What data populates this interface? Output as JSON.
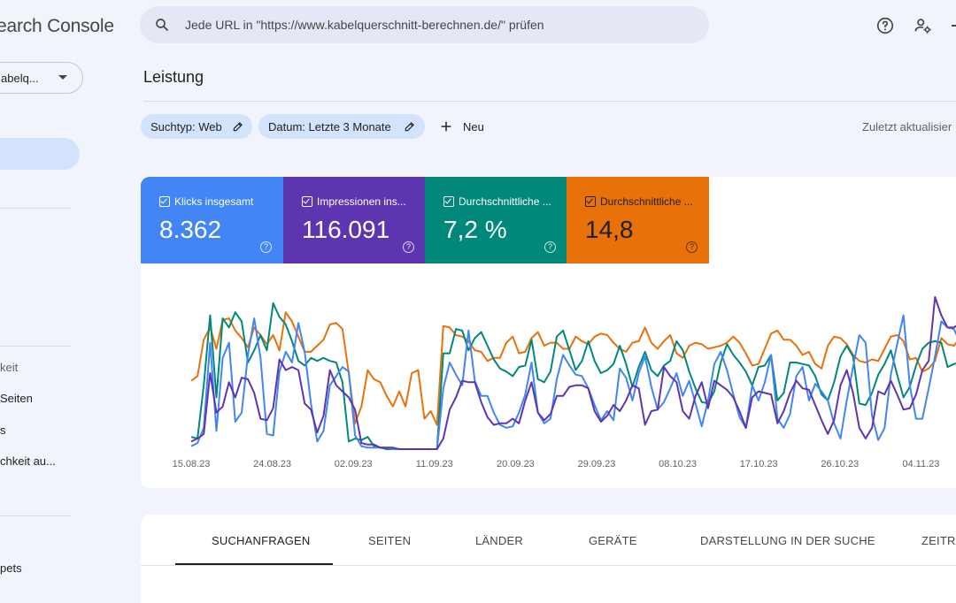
{
  "app": {
    "title": "Search Console",
    "brand_visible": "earch Console"
  },
  "property": {
    "label_visible": "abelq..."
  },
  "sidebar": {
    "section_head": "keit",
    "items": [
      {
        "label": "Seiten"
      },
      {
        "label": "s"
      },
      {
        "label": "chkeit au..."
      },
      {
        "label": "pets"
      }
    ]
  },
  "search": {
    "placeholder": "Jede URL in \"https://www.kabelquerschnitt-berechnen.de/\" prüfen"
  },
  "page": {
    "title": "Leistung",
    "filters": [
      {
        "label": "Suchtyp: Web"
      },
      {
        "label": "Datum: Letzte 3 Monate"
      }
    ],
    "new_label": "Neu",
    "updated_label": "Zuletzt aktualisier"
  },
  "metrics": [
    {
      "label": "Klicks insgesamt",
      "value": "8.362",
      "color": "#4285f4"
    },
    {
      "label": "Impressionen ins...",
      "value": "116.091",
      "color": "#5e35b1"
    },
    {
      "label": "Durchschnittliche ...",
      "value": "7,2 %",
      "color": "#00897b"
    },
    {
      "label": "Durchschnittliche ...",
      "value": "14,8",
      "color": "#e8710a"
    }
  ],
  "chart_data": {
    "type": "line",
    "x_labels": [
      "15.08.23",
      "24.08.23",
      "02.09.23",
      "11.09.23",
      "20.09.23",
      "29.09.23",
      "08.10.23",
      "17.10.23",
      "26.10.23",
      "04.11.23"
    ],
    "y_axis": "hidden (each series on its own normalized scale)",
    "series": [
      {
        "name": "Klicks insgesamt",
        "color": "#4285f4",
        "values": [
          2,
          4,
          14,
          70,
          12,
          60,
          70,
          18,
          24,
          62,
          86,
          60,
          10,
          9,
          51,
          64,
          57,
          83,
          64,
          30,
          5,
          12,
          42,
          48,
          54,
          51,
          9,
          2,
          1,
          1,
          1,
          1,
          0,
          0,
          0,
          0,
          0,
          0,
          0,
          0,
          40,
          57,
          49,
          42,
          78,
          45,
          35,
          35,
          24,
          16,
          14,
          15,
          24,
          36,
          57,
          24,
          17,
          20,
          46,
          62,
          55,
          49,
          48,
          40,
          29,
          19,
          25,
          19,
          53,
          47,
          32,
          50,
          61,
          41,
          26,
          31,
          40,
          50,
          35,
          45,
          30,
          15,
          32,
          56,
          64,
          52,
          36,
          21,
          14,
          42,
          32,
          44,
          62,
          20,
          14,
          23,
          48,
          54,
          32,
          43,
          38,
          32,
          17,
          7,
          32,
          54,
          75,
          70,
          22,
          6,
          14,
          49,
          69,
          88,
          42,
          20,
          20,
          40,
          61,
          84,
          80,
          79,
          70,
          62,
          62
        ]
      },
      {
        "name": "Impressionen insgesamt",
        "color": "#5e35b1",
        "values": [
          5,
          7,
          10,
          50,
          24,
          28,
          44,
          34,
          47,
          46,
          37,
          20,
          19,
          27,
          59,
          52,
          54,
          52,
          30,
          26,
          11,
          22,
          52,
          42,
          38,
          34,
          26,
          4,
          3,
          3,
          1,
          1,
          1,
          0,
          0,
          0,
          0,
          0,
          0,
          0,
          7,
          26,
          34,
          45,
          44,
          44,
          31,
          21,
          16,
          17,
          17,
          20,
          17,
          32,
          44,
          24,
          19,
          23,
          35,
          35,
          41,
          42,
          42,
          40,
          25,
          18,
          22,
          29,
          25,
          32,
          42,
          40,
          16,
          25,
          26,
          54,
          48,
          44,
          25,
          20,
          35,
          44,
          27,
          45,
          42,
          39,
          34,
          25,
          14,
          34,
          38,
          37,
          36,
          17,
          25,
          37,
          45,
          40,
          39,
          29,
          19,
          10,
          19,
          42,
          52,
          37,
          14,
          7,
          14,
          38,
          36,
          45,
          36,
          26,
          27,
          36,
          52,
          58,
          100,
          88,
          80,
          80,
          83,
          84
        ]
      },
      {
        "name": "Durchschnittliche CTR",
        "color": "#00897b",
        "values": [
          8,
          7,
          42,
          88,
          34,
          86,
          80,
          90,
          84,
          57,
          65,
          75,
          65,
          96,
          87,
          82,
          71,
          58,
          55,
          60,
          58,
          60,
          58,
          57,
          44,
          5,
          7,
          6,
          8,
          2,
          1,
          0,
          0,
          0,
          0,
          0,
          0,
          0,
          0,
          0,
          63,
          63,
          79,
          78,
          65,
          73,
          77,
          68,
          59,
          53,
          51,
          48,
          54,
          55,
          72,
          46,
          44,
          51,
          74,
          78,
          65,
          52,
          58,
          71,
          58,
          50,
          52,
          56,
          68,
          56,
          41,
          54,
          64,
          52,
          48,
          55,
          58,
          71,
          65,
          51,
          40,
          31,
          30,
          38,
          57,
          69,
          62,
          57,
          51,
          42,
          54,
          55,
          62,
          32,
          37,
          57,
          57,
          56,
          55,
          48,
          36,
          32,
          44,
          61,
          68,
          61,
          30,
          29,
          37,
          49,
          56,
          65,
          49,
          34,
          41,
          55,
          66,
          70,
          71,
          70,
          54,
          56,
          57,
          55
        ]
      },
      {
        "name": "Durchschnittliche Position",
        "color": "#e8710a",
        "values": [
          45,
          48,
          72,
          80,
          66,
          85,
          86,
          78,
          73,
          67,
          80,
          75,
          69,
          75,
          65,
          90,
          84,
          74,
          64,
          64,
          68,
          72,
          82,
          83,
          79,
          50,
          17,
          28,
          52,
          46,
          44,
          35,
          28,
          38,
          28,
          50,
          52,
          20,
          25,
          16,
          81,
          80,
          75,
          74,
          71,
          65,
          64,
          58,
          60,
          60,
          70,
          74,
          63,
          64,
          73,
          77,
          68,
          70,
          70,
          66,
          66,
          74,
          71,
          69,
          74,
          76,
          75,
          70,
          66,
          64,
          70,
          71,
          80,
          70,
          66,
          71,
          75,
          63,
          60,
          68,
          70,
          69,
          66,
          67,
          68,
          70,
          74,
          70,
          63,
          55,
          56,
          66,
          76,
          78,
          72,
          72,
          68,
          62,
          64,
          56,
          53,
          68,
          74,
          73,
          69,
          62,
          58,
          57,
          59,
          58,
          66,
          74,
          75,
          71,
          59,
          60,
          51,
          53,
          58,
          73,
          69,
          68,
          73,
          69
        ]
      }
    ]
  },
  "tabs": [
    {
      "label": "SUCHANFRAGEN"
    },
    {
      "label": "SEITEN"
    },
    {
      "label": "LÄNDER"
    },
    {
      "label": "GERÄTE"
    },
    {
      "label": "DARSTELLUNG IN DER SUCHE"
    },
    {
      "label": "ZEITRÄ"
    }
  ]
}
